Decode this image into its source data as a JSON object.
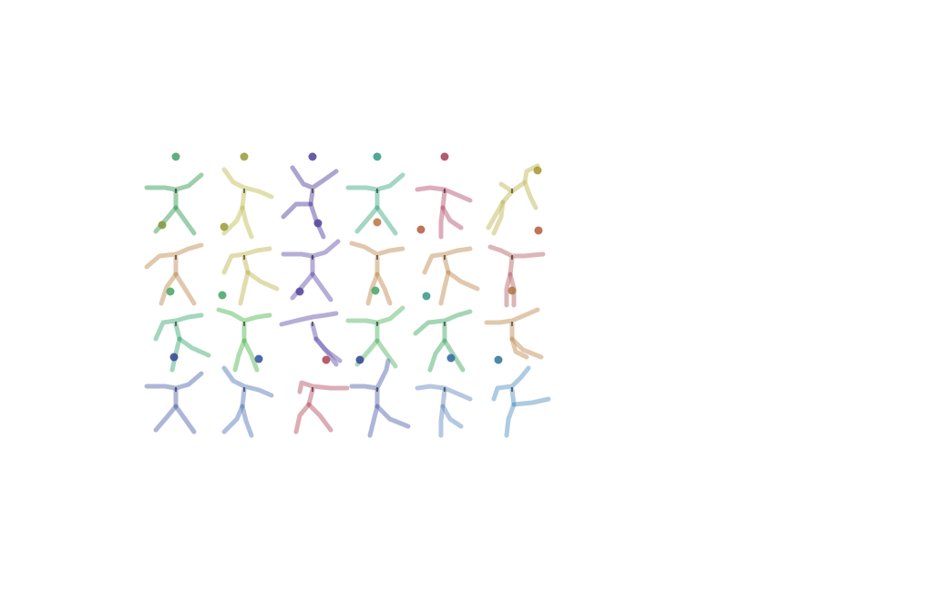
{
  "grid": {
    "rows": 4,
    "cols": 6
  },
  "figures": [
    {
      "id": "r1c1",
      "figure_color": "#4fa86a",
      "head_color": "#4fa86a",
      "ball_color": "#8a9a40",
      "pose": "stand-arms-out"
    },
    {
      "id": "r1c2",
      "figure_color": "#c9c76a",
      "head_color": "#a0a040",
      "ball_color": "#a0a040",
      "pose": "arm-raise-left"
    },
    {
      "id": "r1c3",
      "figure_color": "#6a5aa8",
      "head_color": "#5a4aa0",
      "ball_color": "#5a4aa0",
      "pose": "lunge-arms-up"
    },
    {
      "id": "r1c4",
      "figure_color": "#5ab494",
      "head_color": "#3f9e8a",
      "ball_color": "#c07a4a",
      "pose": "stand-arms-out"
    },
    {
      "id": "r1c5",
      "figure_color": "#c06a84",
      "head_color": "#a84a64",
      "ball_color": "#b8644a",
      "pose": "stand-step"
    },
    {
      "id": "r1c6",
      "figure_color": "#c9c06a",
      "head_color": "#a89a3a",
      "ball_color": "#b8644a",
      "pose": "lean-reach-up"
    },
    {
      "id": "r2c1",
      "figure_color": "#c89a6a",
      "head_color": "#b07a4a",
      "ball_color": "#4fa86a",
      "pose": "arm-raise-right"
    },
    {
      "id": "r2c2",
      "figure_color": "#c9c06a",
      "head_color": "#b08a4a",
      "ball_color": "#4fa86a",
      "pose": "kick-right"
    },
    {
      "id": "r2c3",
      "figure_color": "#7a6ab8",
      "head_color": "#5a4aa0",
      "ball_color": "#5a4aa0",
      "pose": "stand-arms-out"
    },
    {
      "id": "r2c4",
      "figure_color": "#c89a6a",
      "head_color": "#b07a4a",
      "ball_color": "#4fa86a",
      "pose": "arms-up-v"
    },
    {
      "id": "r2c5",
      "figure_color": "#c89a6a",
      "head_color": "#b07a4a",
      "ball_color": "#3f9e8a",
      "pose": "kick-right"
    },
    {
      "id": "r2c6",
      "figure_color": "#c07a7a",
      "head_color": "#a85a5a",
      "ball_color": "#b07a4a",
      "pose": "stand-narrow"
    },
    {
      "id": "r3c1",
      "figure_color": "#5ab48a",
      "head_color": "#3f9e7a",
      "ball_color": "#3a4a9a",
      "pose": "kick-right"
    },
    {
      "id": "r3c2",
      "figure_color": "#6abf6a",
      "head_color": "#4a9e4a",
      "ball_color": "#3a5aa0",
      "pose": "arms-up-v"
    },
    {
      "id": "r3c3",
      "figure_color": "#7a6ab8",
      "head_color": "#5a4aa0",
      "ball_color": "#b04a5a",
      "pose": "lean-kick-low"
    },
    {
      "id": "r3c4",
      "figure_color": "#6abf7a",
      "head_color": "#4a9e5a",
      "ball_color": "#3a4a9a",
      "pose": "stand-arms-out"
    },
    {
      "id": "r3c5",
      "figure_color": "#5ab47a",
      "head_color": "#3f9e6a",
      "ball_color": "#3a6aa8",
      "pose": "arm-raise-right"
    },
    {
      "id": "r3c6",
      "figure_color": "#c89a6a",
      "head_color": "#b07a4a",
      "ball_color": "#3a7aa0",
      "pose": "sit-kick"
    },
    {
      "id": "r4c1",
      "figure_color": "#6a7ab8",
      "head_color": "#3a4a9a",
      "ball_color": "",
      "pose": "stand-arms-out"
    },
    {
      "id": "r4c2",
      "figure_color": "#6a8ac0",
      "head_color": "#3a5aa0",
      "ball_color": "",
      "pose": "arm-raise-left"
    },
    {
      "id": "r4c3",
      "figure_color": "#c06a7a",
      "head_color": "#a84a5a",
      "ball_color": "",
      "pose": "arm-wide-step"
    },
    {
      "id": "r4c4",
      "figure_color": "#6a7ab8",
      "head_color": "#3a4a9a",
      "ball_color": "",
      "pose": "arm-raise-right-high"
    },
    {
      "id": "r4c5",
      "figure_color": "#7a9ac8",
      "head_color": "#4a6aa8",
      "ball_color": "",
      "pose": "stand-step"
    },
    {
      "id": "r4c6",
      "figure_color": "#6aa0c8",
      "head_color": "#4a80a8",
      "ball_color": "",
      "pose": "kick-right-high"
    }
  ]
}
